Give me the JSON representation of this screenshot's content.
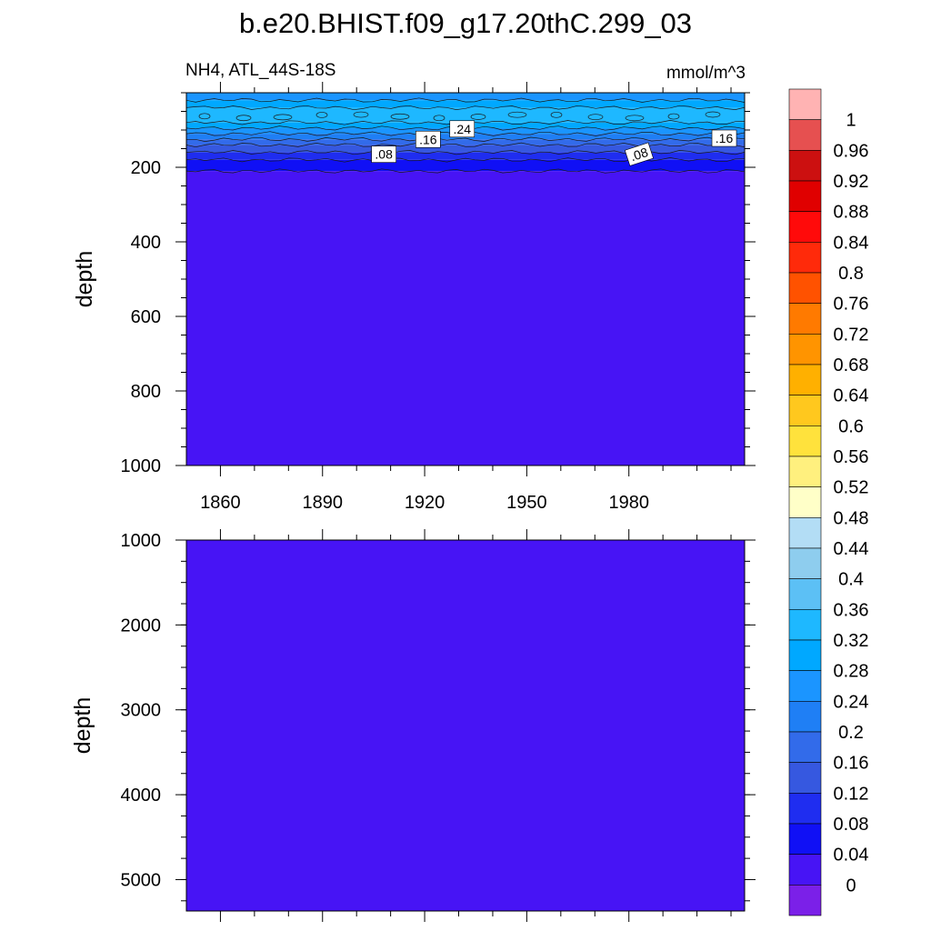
{
  "page": {
    "title": "b.e20.BHIST.f09_g17.20thC.299_03",
    "left_string": "NH4, ATL_44S-18S",
    "right_string": "mmol/m^3"
  },
  "chart_data": [
    {
      "type": "heatmap",
      "panel": "top",
      "variable": "NH4",
      "ylabel": "depth",
      "xlim": [
        1850,
        2014
      ],
      "ylim": [
        0,
        1000
      ],
      "y_reversed": true,
      "x_ticks": [
        1860,
        1890,
        1920,
        1950,
        1980
      ],
      "y_ticks": [
        200,
        400,
        600,
        800,
        1000
      ],
      "contour_labels": [
        {
          "text": ".24",
          "x": 1931,
          "y": 97
        },
        {
          "text": ".16",
          "x": 1921,
          "y": 125
        },
        {
          "text": ".08",
          "x": 1908,
          "y": 165
        },
        {
          "text": ".08",
          "x": 1983,
          "y": 165
        },
        {
          "text": ".16",
          "x": 2008,
          "y": 122
        }
      ],
      "bands": [
        {
          "from_depth": 0,
          "to_depth": 20,
          "value": 0.26
        },
        {
          "from_depth": 20,
          "to_depth": 40,
          "value": 0.3
        },
        {
          "from_depth": 40,
          "to_depth": 80,
          "value": 0.34
        },
        {
          "from_depth": 80,
          "to_depth": 95,
          "value": 0.3
        },
        {
          "from_depth": 95,
          "to_depth": 110,
          "value": 0.26
        },
        {
          "from_depth": 110,
          "to_depth": 125,
          "value": 0.22
        },
        {
          "from_depth": 125,
          "to_depth": 140,
          "value": 0.18
        },
        {
          "from_depth": 140,
          "to_depth": 160,
          "value": 0.14
        },
        {
          "from_depth": 160,
          "to_depth": 180,
          "value": 0.1
        },
        {
          "from_depth": 180,
          "to_depth": 210,
          "value": 0.06
        },
        {
          "from_depth": 210,
          "to_depth": 1000,
          "value": 0.02
        }
      ]
    },
    {
      "type": "heatmap",
      "panel": "bottom",
      "variable": "NH4",
      "ylabel": "depth",
      "xlim": [
        1850,
        2014
      ],
      "ylim": [
        1000,
        5370
      ],
      "y_reversed": true,
      "y_ticks": [
        1000,
        2000,
        3000,
        4000,
        5000
      ],
      "bands": [
        {
          "from_depth": 1000,
          "to_depth": 5370,
          "value": 0.02
        }
      ]
    }
  ],
  "colorbar": {
    "labels": [
      "1",
      "0.96",
      "0.92",
      "0.88",
      "0.84",
      "0.8",
      "0.76",
      "0.72",
      "0.68",
      "0.64",
      "0.6",
      "0.56",
      "0.52",
      "0.48",
      "0.44",
      "0.4",
      "0.36",
      "0.32",
      "0.28",
      "0.24",
      "0.2",
      "0.16",
      "0.12",
      "0.08",
      "0.04",
      "0"
    ],
    "levels": [
      1,
      0.96,
      0.92,
      0.88,
      0.84,
      0.8,
      0.76,
      0.72,
      0.68,
      0.64,
      0.6,
      0.56,
      0.52,
      0.48,
      0.44,
      0.4,
      0.36,
      0.32,
      0.28,
      0.24,
      0.2,
      0.16,
      0.12,
      0.08,
      0.04,
      0
    ],
    "colors": [
      "#ffb3b3",
      "#e65050",
      "#cc1010",
      "#e00000",
      "#ff0a0a",
      "#ff2a0a",
      "#ff5200",
      "#ff7a00",
      "#ff9400",
      "#ffb000",
      "#ffc81e",
      "#ffe23c",
      "#fff07e",
      "#ffffc8",
      "#b3ddf5",
      "#8ecdee",
      "#5cc0f5",
      "#1eb8ff",
      "#00a8ff",
      "#1b95ff",
      "#1f7ff5",
      "#326bea",
      "#3658e0",
      "#1f2df0",
      "#1010f5",
      "#4714f5",
      "#7b20e8"
    ]
  }
}
